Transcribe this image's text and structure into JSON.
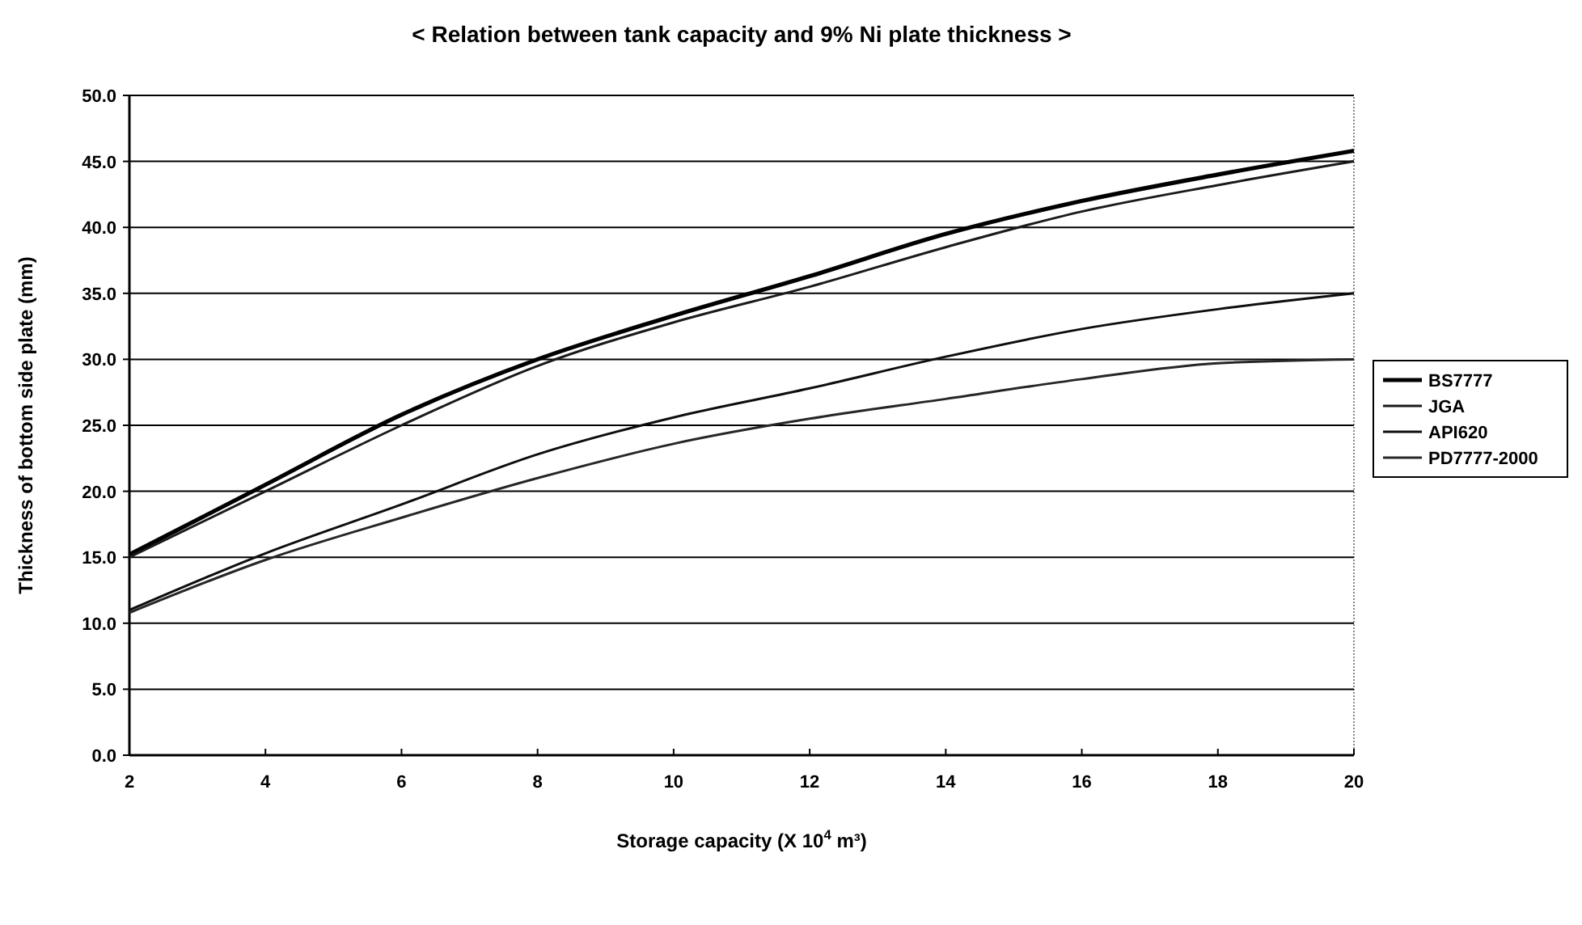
{
  "chart_data": {
    "type": "line",
    "title": "< Relation between tank capacity and 9% Ni plate thickness >",
    "xlabel": "Storage capacity (X 10$^{4}$  m³)",
    "ylabel": "Thickness of bottom side plate (mm)",
    "x": [
      2,
      4,
      6,
      8,
      10,
      12,
      14,
      16,
      18,
      20
    ],
    "series": [
      {
        "name": "BS7777",
        "color": "#000000",
        "values": [
          15.2,
          20.5,
          25.8,
          30.0,
          33.3,
          36.3,
          39.5,
          42.0,
          44.0,
          45.8
        ]
      },
      {
        "name": "JGA",
        "color": "#1a1a1a",
        "values": [
          15.0,
          20.0,
          25.0,
          29.5,
          32.8,
          35.5,
          38.5,
          41.2,
          43.2,
          45.0
        ]
      },
      {
        "name": "API620",
        "color": "#0d0d0d",
        "values": [
          11.0,
          15.3,
          19.0,
          22.8,
          25.6,
          27.8,
          30.2,
          32.3,
          33.8,
          35.0
        ]
      },
      {
        "name": "PD7777-2000",
        "color": "#262626",
        "values": [
          10.8,
          14.8,
          18.0,
          21.0,
          23.6,
          25.5,
          27.0,
          28.5,
          29.7,
          30.0
        ]
      }
    ],
    "xlim": [
      2,
      20
    ],
    "xticks": [
      2,
      4,
      6,
      8,
      10,
      12,
      14,
      16,
      18,
      20
    ],
    "ylim": [
      0,
      50
    ],
    "yticks": [
      {
        "value": 0,
        "label": "0.0"
      },
      {
        "value": 5,
        "label": "5.0"
      },
      {
        "value": 10,
        "label": "10.0"
      },
      {
        "value": 15,
        "label": "15.0"
      },
      {
        "value": 20,
        "label": "20.0"
      },
      {
        "value": 25,
        "label": "25.0"
      },
      {
        "value": 30,
        "label": "30.0"
      },
      {
        "value": 35,
        "label": "35.0"
      },
      {
        "value": 40,
        "label": "40.0"
      },
      {
        "value": 45,
        "label": "45.0"
      },
      {
        "value": 50,
        "label": "50.0"
      }
    ],
    "grid": "y",
    "legend": "right",
    "marker": "none",
    "line_style": "solid"
  }
}
